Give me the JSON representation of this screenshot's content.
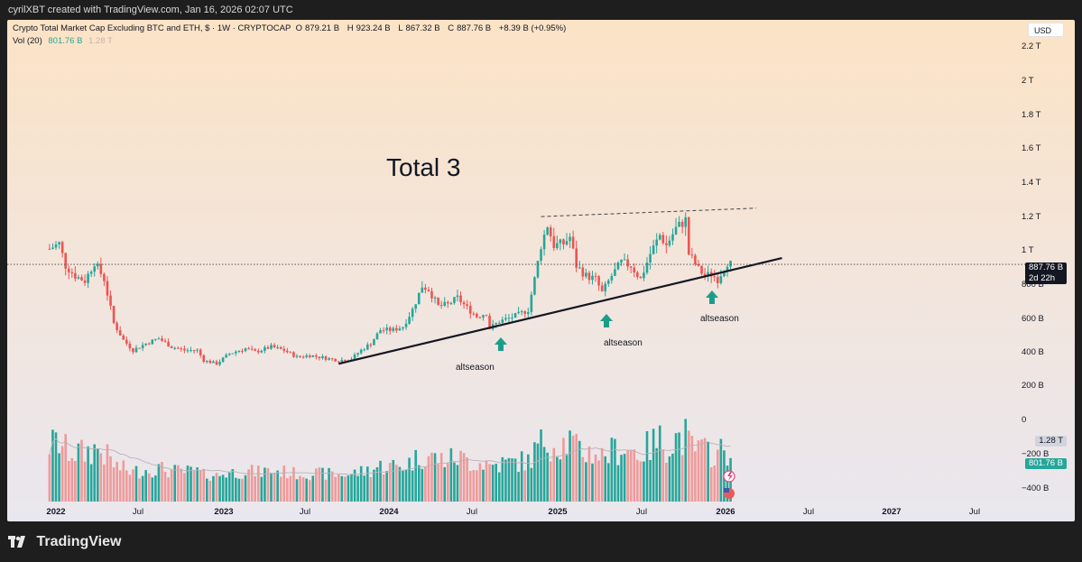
{
  "header": {
    "credit": "cyrilXBT created with TradingView.com, Jan 16, 2026 02:07 UTC"
  },
  "legend": {
    "name": "Crypto Total Market Cap Excluding BTC and ETH, $ · 1W · CRYPTOCAP",
    "o_label": "O",
    "o_value": "879.21 B",
    "h_label": "H",
    "h_value": "923.24 B",
    "l_label": "L",
    "l_value": "867.32 B",
    "c_label": "C",
    "c_value": "887.76 B",
    "change": "+8.39 B (+0.95%)",
    "vol_label": "Vol (20)",
    "vol_value": "801.76 B",
    "vol_ma": "1.28 T"
  },
  "currency_button": "USD",
  "annotations": {
    "title_text": "Total 3",
    "altseason": [
      "altseason",
      "altseason",
      "altseason"
    ]
  },
  "price_tag": {
    "last": "887.76 B",
    "countdown": "2d 22h"
  },
  "volume_tags": {
    "ma": "1.28 T",
    "vol": "801.76 B"
  },
  "footer": {
    "brand": "TradingView"
  },
  "colors": {
    "up": "#26a69a",
    "down": "#ef5350",
    "vol_down": "#ef9a9a",
    "background_top": "#fbe3c7",
    "background_bottom": "#ece8ee"
  },
  "icons": [
    "trend-arrow-up-icon",
    "flash-icon",
    "us-flag-icon",
    "tradingview-logo-icon"
  ],
  "chart_data": {
    "type": "candlestick",
    "title": "Crypto Total Market Cap Excluding BTC and ETH",
    "timeframe": "1W",
    "x_ticks": [
      "2022",
      "Jul",
      "2023",
      "Jul",
      "2024",
      "Jul",
      "2025",
      "Jul",
      "2026",
      "Jul",
      "2027",
      "Jul"
    ],
    "y_ticks": [
      "2.2 T",
      "2 T",
      "1.8 T",
      "1.6 T",
      "1.4 T",
      "1.2 T",
      "1 T",
      "800 B",
      "600 B",
      "400 B",
      "200 B",
      "0",
      "−200 B",
      "−400 B"
    ],
    "price_path": [
      [
        "2021-12-20",
        980
      ],
      [
        "2022-01-10",
        1010
      ],
      [
        "2022-01-24",
        880
      ],
      [
        "2022-02-14",
        820
      ],
      [
        "2022-03-07",
        790
      ],
      [
        "2022-03-28",
        900
      ],
      [
        "2022-04-18",
        800
      ],
      [
        "2022-05-09",
        540
      ],
      [
        "2022-05-30",
        440
      ],
      [
        "2022-06-20",
        380
      ],
      [
        "2022-07-18",
        420
      ],
      [
        "2022-08-15",
        450
      ],
      [
        "2022-09-12",
        400
      ],
      [
        "2022-10-10",
        380
      ],
      [
        "2022-11-07",
        380
      ],
      [
        "2022-11-21",
        320
      ],
      [
        "2022-12-19",
        300
      ],
      [
        "2023-01-16",
        360
      ],
      [
        "2023-02-20",
        390
      ],
      [
        "2023-03-13",
        370
      ],
      [
        "2023-04-17",
        400
      ],
      [
        "2023-05-15",
        380
      ],
      [
        "2023-06-12",
        340
      ],
      [
        "2023-07-10",
        350
      ],
      [
        "2023-08-21",
        330
      ],
      [
        "2023-09-11",
        320
      ],
      [
        "2023-10-09",
        330
      ],
      [
        "2023-10-30",
        380
      ],
      [
        "2023-11-20",
        420
      ],
      [
        "2023-12-11",
        500
      ],
      [
        "2024-01-08",
        500
      ],
      [
        "2024-01-29",
        520
      ],
      [
        "2024-02-19",
        620
      ],
      [
        "2024-03-11",
        760
      ],
      [
        "2024-03-25",
        740
      ],
      [
        "2024-04-15",
        640
      ],
      [
        "2024-05-06",
        650
      ],
      [
        "2024-05-27",
        690
      ],
      [
        "2024-06-17",
        630
      ],
      [
        "2024-07-08",
        580
      ],
      [
        "2024-07-29",
        600
      ],
      [
        "2024-08-05",
        510
      ],
      [
        "2024-08-26",
        550
      ],
      [
        "2024-09-16",
        570
      ],
      [
        "2024-10-07",
        590
      ],
      [
        "2024-10-28",
        620
      ],
      [
        "2024-11-11",
        800
      ],
      [
        "2024-11-25",
        1000
      ],
      [
        "2024-12-09",
        1120
      ],
      [
        "2024-12-23",
        1000
      ],
      [
        "2025-01-13",
        1010
      ],
      [
        "2025-01-27",
        1050
      ],
      [
        "2025-02-10",
        880
      ],
      [
        "2025-03-03",
        820
      ],
      [
        "2025-03-24",
        800
      ],
      [
        "2025-04-07",
        720
      ],
      [
        "2025-04-28",
        820
      ],
      [
        "2025-05-19",
        900
      ],
      [
        "2025-06-09",
        880
      ],
      [
        "2025-06-30",
        800
      ],
      [
        "2025-07-21",
        950
      ],
      [
        "2025-08-11",
        1060
      ],
      [
        "2025-08-25",
        1000
      ],
      [
        "2025-09-15",
        1100
      ],
      [
        "2025-10-06",
        1150
      ],
      [
        "2025-10-13",
        950
      ],
      [
        "2025-11-03",
        860
      ],
      [
        "2025-11-17",
        820
      ],
      [
        "2025-12-01",
        830
      ],
      [
        "2025-12-15",
        800
      ],
      [
        "2026-01-05",
        900
      ],
      [
        "2026-01-12",
        888
      ]
    ],
    "support_trendline": [
      [
        "2023-09-11",
        300
      ],
      [
        "2026-05-04",
        925
      ]
    ],
    "resistance_trendline": [
      [
        "2024-11-25",
        1170
      ],
      [
        "2026-03-09",
        1220
      ]
    ],
    "last_close": 887.76,
    "volume_ma_20": "1.28 T",
    "last_volume": "801.76 B"
  }
}
